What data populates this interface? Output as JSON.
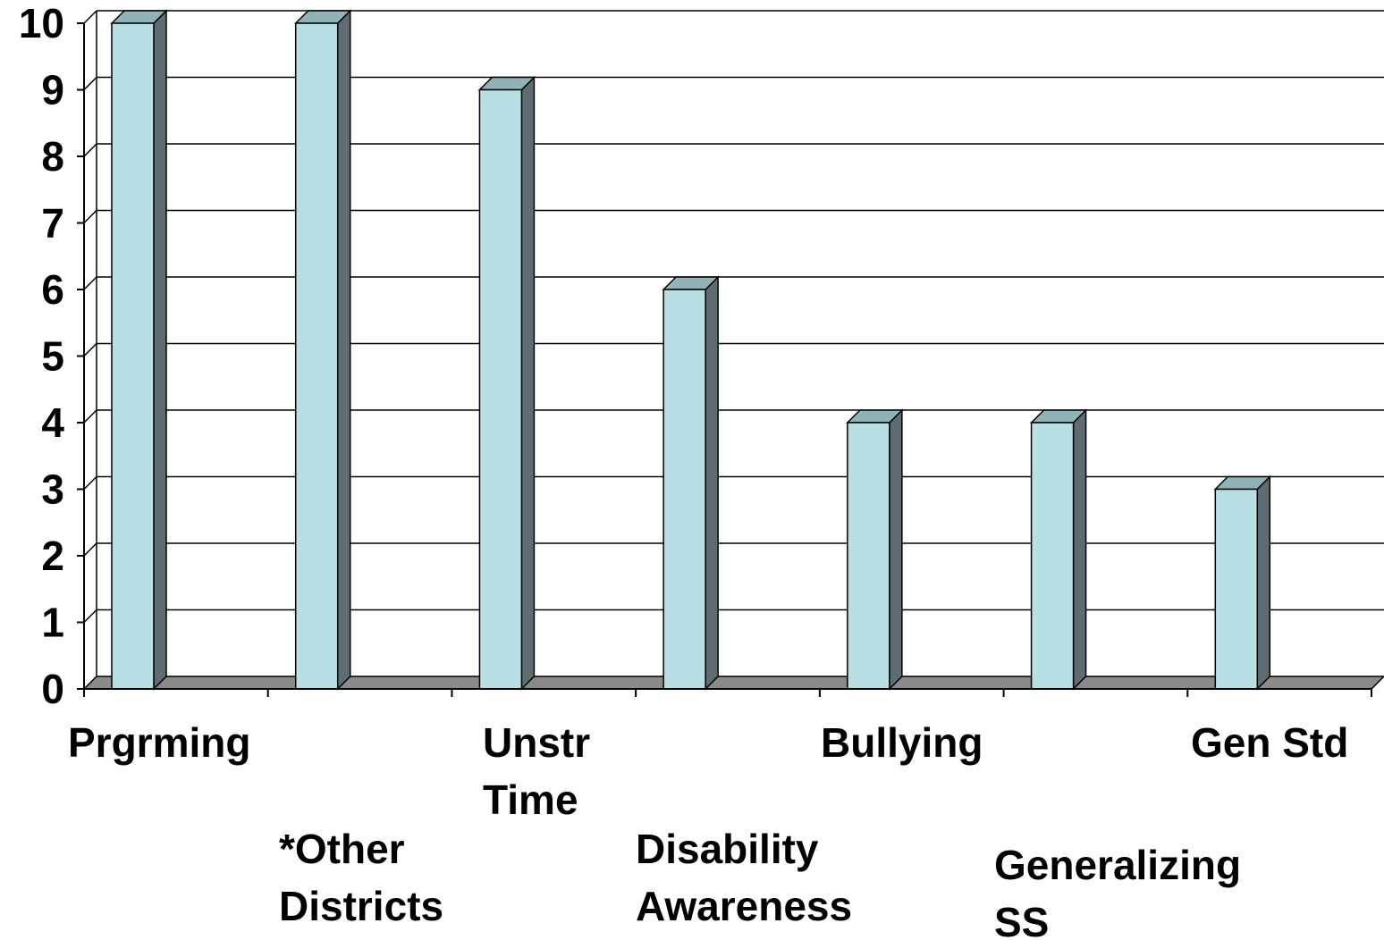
{
  "chart_data": {
    "type": "bar",
    "title": "",
    "xlabel": "",
    "ylabel": "",
    "categories": [
      [
        "Prgrming"
      ],
      [
        "*Other",
        "Districts"
      ],
      [
        "Unstr",
        "Time"
      ],
      [
        "Disability",
        "Awareness"
      ],
      [
        "Bullying"
      ],
      [
        "Generalizing",
        "SS"
      ],
      [
        "Gen Std"
      ]
    ],
    "values": [
      10,
      10,
      9,
      6,
      4,
      4,
      3
    ],
    "ylim": [
      0,
      10
    ],
    "yticks": [
      "0",
      "1",
      "2",
      "3",
      "4",
      "5",
      "6",
      "7",
      "8",
      "9",
      "10"
    ],
    "grid": true,
    "legend": "none",
    "style": "3d-column"
  },
  "colors": {
    "bar_front": "#b8dfe3",
    "bar_side": "#5f6d73",
    "bar_top": "#8fb3b7",
    "floor": "#8a8a8a",
    "grid": "#000000"
  }
}
